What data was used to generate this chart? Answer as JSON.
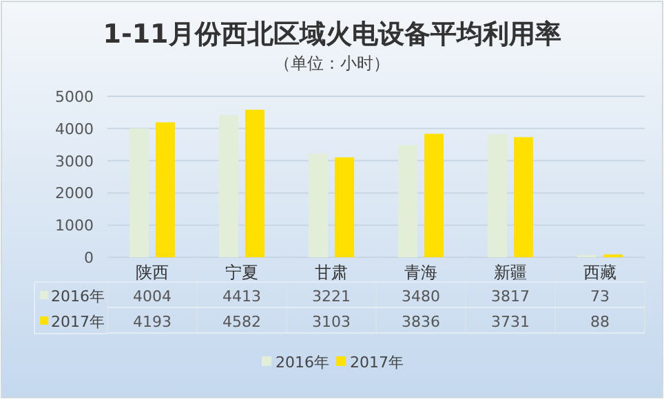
{
  "chart_data": {
    "type": "bar",
    "title": "1-11月份西北区域火电设备平均利用率",
    "subtitle": "（单位：小时）",
    "categories": [
      "陕西",
      "宁夏",
      "甘肃",
      "青海",
      "新疆",
      "西藏"
    ],
    "series": [
      {
        "name": "2016年",
        "color": "#e2eed8",
        "values": [
          4004,
          4413,
          3221,
          3480,
          3817,
          73
        ]
      },
      {
        "name": "2017年",
        "color": "#ffe000",
        "values": [
          4193,
          4582,
          3103,
          3836,
          3731,
          88
        ]
      }
    ],
    "ylim": [
      0,
      5000
    ],
    "yticks": [
      0,
      1000,
      2000,
      3000,
      4000,
      5000
    ],
    "grid": "y",
    "legend": "bottom",
    "data_labels": true
  }
}
